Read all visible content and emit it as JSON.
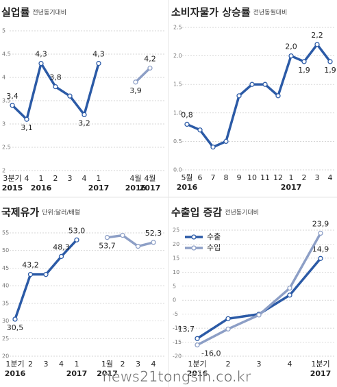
{
  "chart_data": [
    {
      "type": "line",
      "title": "실업률",
      "subtitle": "전년동기대비",
      "categories": [
        "3분기",
        "4",
        "1",
        "2",
        "3",
        "4",
        "1",
        "4월",
        "4월"
      ],
      "years": [
        "2015",
        null,
        "2016",
        null,
        null,
        null,
        "2017",
        "2016",
        "2017"
      ],
      "series": [
        {
          "color": "#2b5aa6",
          "values": [
            3.4,
            3.1,
            4.3,
            3.8,
            3.6,
            3.2,
            4.3,
            null,
            null
          ],
          "value_labels": [
            "3,4",
            "3,1",
            "4,3",
            "3,8",
            null,
            "3,2",
            "4,3",
            null,
            null
          ]
        },
        {
          "color": "#8d9fc6",
          "values": [
            null,
            null,
            null,
            null,
            null,
            null,
            null,
            3.9,
            4.2
          ],
          "value_labels": [
            null,
            null,
            null,
            null,
            null,
            null,
            null,
            "3,9",
            "4,2"
          ]
        }
      ],
      "ylim": [
        2,
        5
      ],
      "yticks": [
        2,
        2.5,
        3,
        3.5,
        4,
        4.5,
        5
      ],
      "grid": true
    },
    {
      "type": "line",
      "title": "소비자물가 상승률",
      "subtitle": "전년동월대비",
      "categories": [
        "5월",
        "6",
        "7",
        "8",
        "9",
        "10",
        "11",
        "12",
        "1",
        "2",
        "3",
        "4"
      ],
      "years": [
        "2016",
        null,
        null,
        null,
        null,
        null,
        null,
        null,
        "2017",
        null,
        null,
        null
      ],
      "series": [
        {
          "color": "#2b5aa6",
          "values": [
            0.8,
            0.7,
            0.4,
            0.5,
            1.3,
            1.5,
            1.5,
            1.3,
            2.0,
            1.9,
            2.2,
            1.9
          ],
          "value_labels": [
            "0,8",
            null,
            null,
            null,
            null,
            null,
            null,
            null,
            "2,0",
            "1,9",
            "2,2",
            "1,9"
          ]
        }
      ],
      "ylim": [
        0,
        2.5
      ],
      "yticks": [
        {
          "value": 0,
          "label": "0.0"
        },
        0.5,
        {
          "value": 1,
          "label": "1.0"
        },
        1.5,
        {
          "value": 2,
          "label": "2.0"
        },
        2.5
      ],
      "grid": true
    },
    {
      "type": "line",
      "title": "국제유가",
      "subtitle": "단위:달러/배럴",
      "categories": [
        "1분기",
        "2",
        "3",
        "4",
        "1",
        "1월",
        "2",
        "3",
        "4"
      ],
      "years": [
        "2016",
        null,
        null,
        null,
        "2017",
        "2017",
        null,
        null,
        null
      ],
      "series": [
        {
          "color": "#2b5aa6",
          "values": [
            30.5,
            43.2,
            43.2,
            48.3,
            53.0,
            null,
            null,
            null,
            null
          ],
          "value_labels": [
            "30,5",
            "43,2",
            null,
            "48,3",
            "53,0",
            null,
            null,
            null,
            null
          ]
        },
        {
          "color": "#8d9fc6",
          "values": [
            null,
            null,
            null,
            null,
            null,
            53.7,
            54.3,
            51.2,
            52.3
          ],
          "value_labels": [
            null,
            null,
            null,
            null,
            null,
            "53,7",
            null,
            null,
            "52,3"
          ]
        }
      ],
      "ylim": [
        20,
        55
      ],
      "yticks": [
        20,
        25,
        30,
        35,
        40,
        45,
        50,
        55
      ],
      "grid": true
    },
    {
      "type": "line",
      "title": "수출입 증감",
      "subtitle": "전년동기대비",
      "categories": [
        "1분기",
        "2",
        "3",
        "4",
        "1분기"
      ],
      "years": [
        "2016",
        null,
        null,
        null,
        "2017"
      ],
      "series": [
        {
          "name": "수출",
          "color": "#2b5aa6",
          "values": [
            -13.7,
            -6.6,
            -5.0,
            1.8,
            14.9
          ],
          "value_labels": [
            "-13,7",
            null,
            null,
            null,
            "14,9"
          ]
        },
        {
          "name": "수입",
          "color": "#8d9fc6",
          "values": [
            -16.0,
            -10.3,
            -5.3,
            4.3,
            23.9
          ],
          "value_labels": [
            "-16,0",
            null,
            null,
            null,
            "23,9"
          ]
        }
      ],
      "ylim": [
        -20,
        25
      ],
      "yticks": [
        -20,
        -15,
        -10,
        -5,
        0,
        5,
        10,
        15,
        20,
        25
      ],
      "grid": true,
      "legend": "upper left"
    }
  ],
  "watermark": "news21tongsin.co.kr"
}
